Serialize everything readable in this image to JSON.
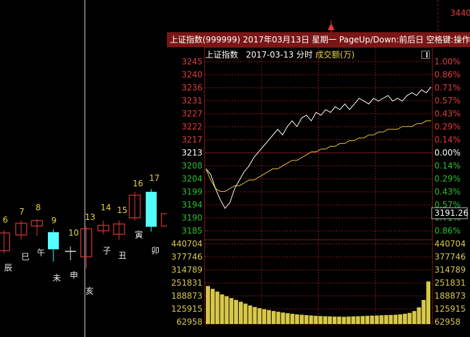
{
  "window": {
    "title": "上证指数(999999) 2017年03月13日 星期一 PageUp/Down:前后日 空格键:操作 通",
    "subtitle_name": "上证指数",
    "subtitle_date": "2017-03-13",
    "subtitle_mode": "分时",
    "subtitle_indicator": "成交额(万)",
    "top_right_price": "3440"
  },
  "colors": {
    "up": "#e23a3a",
    "down": "#2cc02c",
    "cyan_candle": "#5ff",
    "price_line": "#ffffff",
    "avg_line": "#e8c43a",
    "volume": "#d8c84a",
    "title_bar": "#7a1616"
  },
  "background_chart": {
    "candles": [
      {
        "num": "6",
        "branch": "辰",
        "color": "up"
      },
      {
        "num": "7",
        "branch": "巳",
        "color": "up"
      },
      {
        "num": "8",
        "branch": "午",
        "color": "up"
      },
      {
        "num": "9",
        "branch": "未",
        "color": "cyan"
      },
      {
        "num": "10",
        "branch": "申",
        "color": "neutral"
      },
      {
        "num": "13",
        "branch": "亥",
        "color": "up"
      },
      {
        "num": "14",
        "branch": "子",
        "color": "up"
      },
      {
        "num": "15",
        "branch": "丑",
        "color": "up"
      },
      {
        "num": "16",
        "branch": "寅",
        "color": "up"
      },
      {
        "num": "17",
        "branch": "卯",
        "color": "cyan"
      }
    ]
  },
  "chart_data": {
    "type": "line",
    "price_axis": [
      "3245",
      "3240",
      "3236",
      "3231",
      "3227",
      "3222",
      "3217",
      "3213",
      "3208",
      "3204",
      "3199",
      "3194",
      "3190",
      "3185"
    ],
    "percent_axis": [
      "1.00%",
      "0.86%",
      "0.71%",
      "0.57%",
      "0.43%",
      "0.29%",
      "0.14%",
      "0.00%",
      "0.14%",
      "0.29%",
      "0.43%",
      "0.57%",
      "0.71%",
      "0.86%"
    ],
    "reference_price": 3213,
    "current_price_label": "3191.26",
    "ylim": [
      3185,
      3245
    ],
    "price_series": [
      3207,
      3205,
      3200,
      3196,
      3193,
      3195,
      3200,
      3203,
      3206,
      3208,
      3211,
      3213,
      3215,
      3217,
      3219,
      3221,
      3219,
      3222,
      3224,
      3222,
      3225,
      3226,
      3224,
      3227,
      3226,
      3228,
      3227,
      3229,
      3228,
      3230,
      3228,
      3230,
      3232,
      3231,
      3230,
      3232,
      3231,
      3232,
      3233,
      3231,
      3232,
      3231,
      3233,
      3234,
      3233,
      3235,
      3234,
      3236
    ],
    "avg_series": [
      3207,
      3203,
      3200,
      3199,
      3199,
      3200,
      3201,
      3201,
      3202,
      3203,
      3203,
      3204,
      3205,
      3206,
      3207,
      3207,
      3208,
      3209,
      3210,
      3210,
      3211,
      3212,
      3213,
      3213,
      3214,
      3214,
      3215,
      3215,
      3216,
      3216,
      3217,
      3217,
      3218,
      3218,
      3219,
      3219,
      3220,
      3220,
      3221,
      3221,
      3221,
      3222,
      3222,
      3222,
      3223,
      3223,
      3224,
      3224
    ],
    "volume_axis": [
      "440704",
      "377746",
      "314789",
      "251831",
      "188873",
      "125915",
      "62958"
    ],
    "volume_ylim": [
      0,
      440704
    ],
    "volume_series": [
      205000,
      190000,
      175000,
      160000,
      150000,
      140000,
      130000,
      120000,
      110000,
      100000,
      92000,
      85000,
      80000,
      75000,
      70000,
      66000,
      62000,
      58000,
      55000,
      52000,
      50000,
      48000,
      46000,
      44000,
      43000,
      42000,
      41000,
      40000,
      40000,
      39000,
      40000,
      41000,
      42000,
      43000,
      44000,
      45000,
      46000,
      47000,
      48000,
      49000,
      50000,
      52000,
      55000,
      60000,
      70000,
      90000,
      130000,
      230000
    ]
  }
}
